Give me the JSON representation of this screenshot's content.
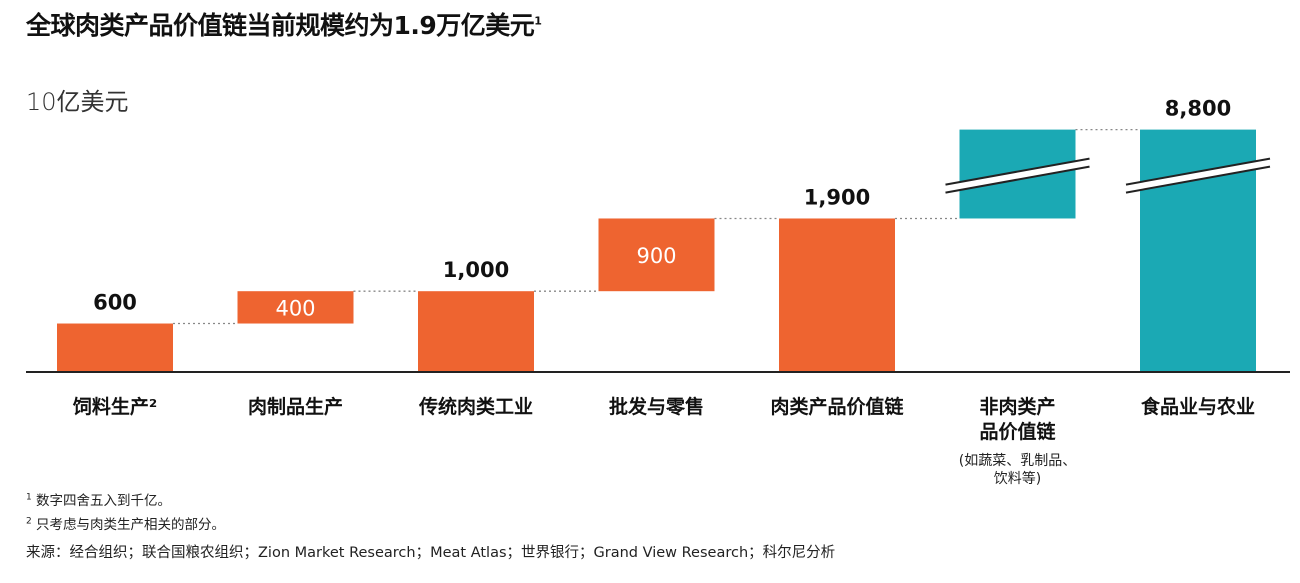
{
  "title": "全球肉类产品价值链当前规模约为1.9万亿美元",
  "title_sup": "1",
  "unit": "10亿美元",
  "footnotes": {
    "note1_marker": "1",
    "note1": "数字四舍五入到千亿。",
    "note2_marker": "2",
    "note2": "只考虑与肉类生产相关的部分。",
    "source": "来源：经合组织；联合国粮农组织；Zion Market Research；Meat Atlas；世界银行；Grand View Research；科尔尼分析"
  },
  "colors": {
    "orange": "#EE6430",
    "teal": "#1BA9B4",
    "axis": "#222222",
    "connector": "#888888"
  },
  "chart_data": {
    "type": "bar",
    "subtype": "waterfall",
    "categories": [
      "饲料生产²",
      "肉制品生产",
      "传统肉类工业",
      "批发与零售",
      "肉类产品价值链",
      "非肉类产品价值链",
      "食品业与农业"
    ],
    "category_lines": [
      [
        "饲料生产²"
      ],
      [
        "肉制品生产"
      ],
      [
        "传统肉类工业"
      ],
      [
        "批发与零售"
      ],
      [
        "肉类产品价值链"
      ],
      [
        "非肉类产",
        "品价值链"
      ],
      [
        "食品业与农业"
      ]
    ],
    "category_sublabel": {
      "index": 5,
      "lines": [
        "(如蔬菜、乳制品、",
        "饮料等)"
      ]
    },
    "bars": [
      {
        "base": 0,
        "top": 600,
        "label": "600",
        "label_pos": "above",
        "color": "orange",
        "broken": false
      },
      {
        "base": 600,
        "top": 1000,
        "label": "400",
        "label_pos": "inside",
        "color": "orange",
        "broken": false
      },
      {
        "base": 0,
        "top": 1000,
        "label": "1,000",
        "label_pos": "above",
        "color": "orange",
        "broken": false
      },
      {
        "base": 1000,
        "top": 1900,
        "label": "900",
        "label_pos": "inside",
        "color": "orange",
        "broken": false
      },
      {
        "base": 0,
        "top": 1900,
        "label": "1,900",
        "label_pos": "above",
        "color": "orange",
        "broken": false
      },
      {
        "base": 1900,
        "top": 8800,
        "label": "",
        "label_pos": "none",
        "color": "teal",
        "broken": true
      },
      {
        "base": 0,
        "top": 8800,
        "label": "8,800",
        "label_pos": "above",
        "color": "teal",
        "broken": true
      }
    ],
    "y_axis_break": {
      "display_value": 3000,
      "note": "bars above break drawn truncated with slash marks"
    },
    "ylabel": "10亿美元",
    "grid": false,
    "legend": "none"
  }
}
